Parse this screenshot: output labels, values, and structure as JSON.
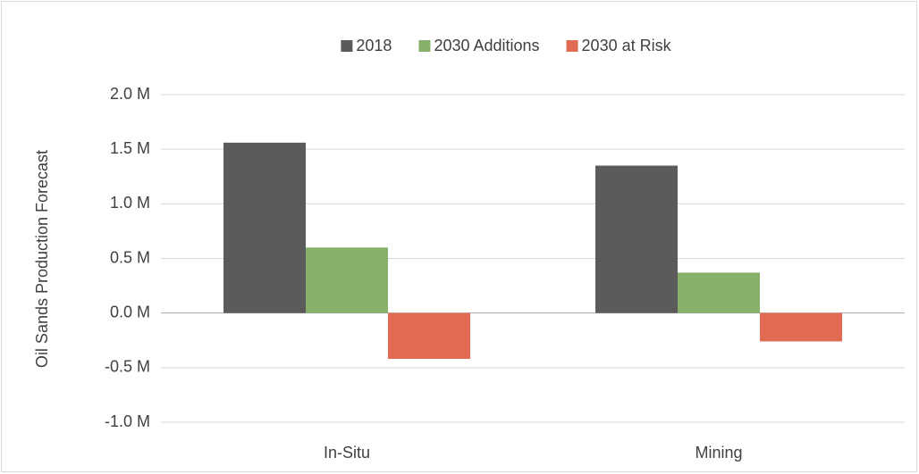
{
  "chart_data": {
    "type": "bar",
    "y_label": "Oil Sands Production Forecast",
    "categories": [
      "In-Situ",
      "Mining"
    ],
    "series": [
      {
        "name": "2018",
        "color": "#5b5b5b",
        "values": [
          1560000,
          1350000
        ]
      },
      {
        "name": "2030 Additions",
        "color": "#87b16b",
        "values": [
          600000,
          370000
        ]
      },
      {
        "name": "2030 at Risk",
        "color": "#e06a52",
        "values": [
          -420000,
          -260000
        ]
      }
    ],
    "ylim": [
      -1000000,
      2000000
    ],
    "yticks": [
      {
        "value": -1000000,
        "label": "-1.0 M"
      },
      {
        "value": -500000,
        "label": "-0.5 M"
      },
      {
        "value": 0,
        "label": "0.0 M"
      },
      {
        "value": 500000,
        "label": "0.5 M"
      },
      {
        "value": 1000000,
        "label": "1.0 M"
      },
      {
        "value": 1500000,
        "label": "1.5 M"
      },
      {
        "value": 2000000,
        "label": "2.0 M"
      }
    ],
    "grid": true,
    "legend": "top"
  }
}
